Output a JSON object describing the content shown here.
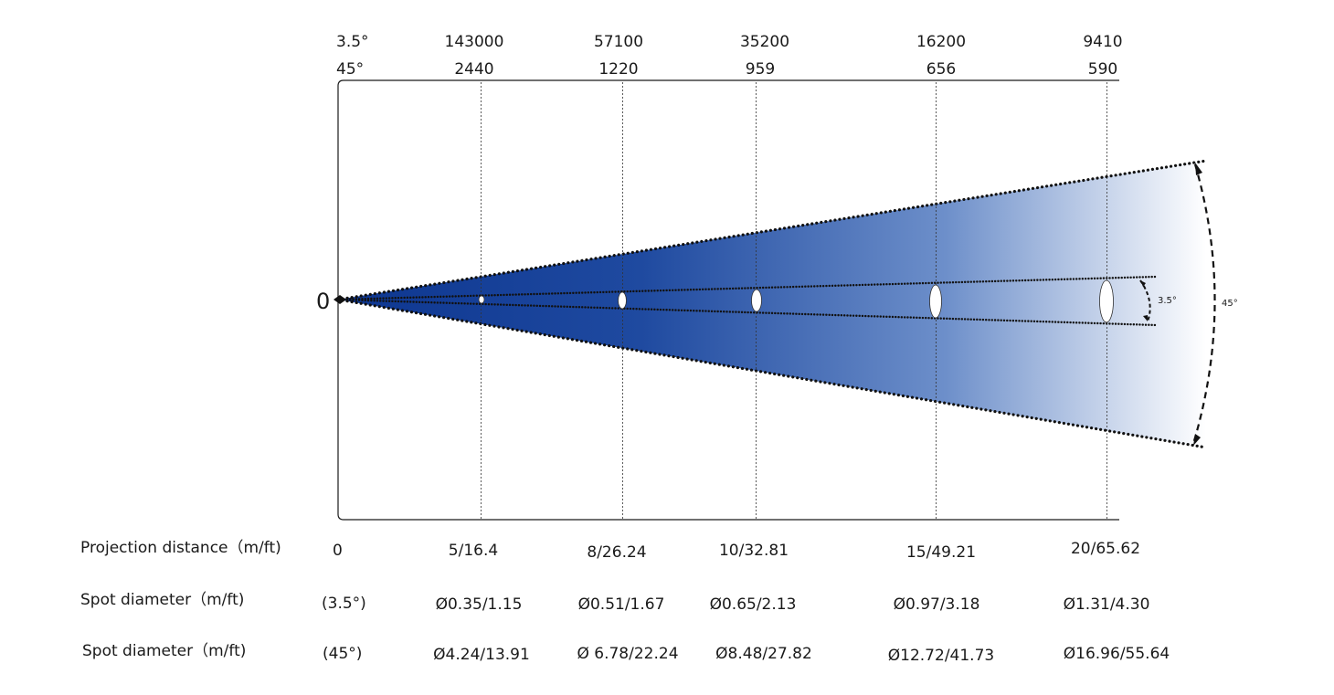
{
  "header": {
    "beam_angle_narrow": "3.5°",
    "beam_angle_wide": "45°"
  },
  "origin_label": "0",
  "columns": [
    {
      "lux_narrow": "143000",
      "lux_wide": "2440",
      "distance": "5/16.4",
      "spot_narrow": "Ø0.35/1.15",
      "spot_wide": "Ø4.24/13.91"
    },
    {
      "lux_narrow": "57100",
      "lux_wide": "1220",
      "distance": "8/26.24",
      "spot_narrow": "Ø0.51/1.67",
      "spot_wide": "Ø 6.78/22.24"
    },
    {
      "lux_narrow": "35200",
      "lux_wide": "959",
      "distance": "10/32.81",
      "spot_narrow": "Ø0.65/2.13",
      "spot_wide": "Ø8.48/27.82"
    },
    {
      "lux_narrow": "16200",
      "lux_wide": "656",
      "distance": "15/49.21",
      "spot_narrow": "Ø0.97/3.18",
      "spot_wide": "Ø12.72/41.73"
    },
    {
      "lux_narrow": "9410",
      "lux_wide": "590",
      "distance": "20/65.62",
      "spot_narrow": "Ø1.31/4.30",
      "spot_wide": "Ø16.96/55.64"
    }
  ],
  "rows": {
    "distance_label": "Projection distance（m/ft)",
    "distance_start": "0",
    "spot_narrow_label": "Spot diameter（m/ft)",
    "spot_narrow_angle": "(3.5°)",
    "spot_wide_label": "Spot diameter（m/ft)",
    "spot_wide_angle": "(45°)"
  },
  "annotations": {
    "narrow_angle": "3.5°",
    "wide_angle": "45°"
  },
  "colors": {
    "beam_dark": "#0d3690",
    "beam_light": "#ffffff",
    "line": "#1a1a1a"
  }
}
